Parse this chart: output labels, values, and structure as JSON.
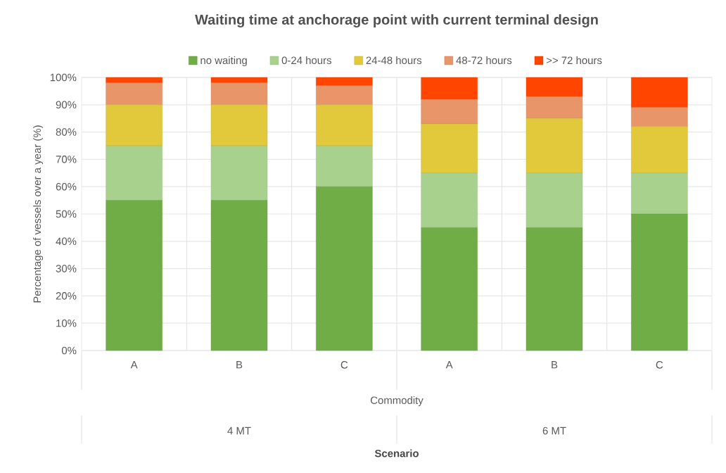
{
  "chart_data": {
    "type": "bar",
    "stacked": true,
    "title": "Waiting time at anchorage point with current terminal design",
    "xlabel": "Commodity",
    "ylabel": "Percentage of vessels over a year (%)",
    "categories": [
      "A",
      "B",
      "C",
      "A",
      "B",
      "C"
    ],
    "annotations": [
      "4 MT",
      "6 MT",
      "Scenario"
    ],
    "series": [
      {
        "name": "no waiting",
        "color": "#70ad47",
        "values": [
          55,
          55,
          60,
          45,
          45,
          50
        ]
      },
      {
        "name": "0-24 hours",
        "color": "#a9d18e",
        "values": [
          20,
          20,
          15,
          20,
          20,
          15
        ]
      },
      {
        "name": "24-48 hours",
        "color": "#e2c93b",
        "values": [
          15,
          15,
          15,
          18,
          20,
          17
        ]
      },
      {
        "name": "48-72 hours",
        "color": "#e8956a",
        "values": [
          8,
          8,
          7,
          9,
          8,
          7
        ]
      },
      {
        "name": ">> 72 hours",
        "color": "#ff4500",
        "values": [
          2,
          2,
          3,
          8,
          7,
          11
        ]
      }
    ],
    "ylim": [
      0,
      100
    ],
    "yticks": [
      {
        "value": 0,
        "label": "0%"
      },
      {
        "value": 10,
        "label": "10%"
      },
      {
        "value": 20,
        "label": "20%"
      },
      {
        "value": 30,
        "label": "30%"
      },
      {
        "value": 40,
        "label": "40%"
      },
      {
        "value": 50,
        "label": "50%"
      },
      {
        "value": 60,
        "label": "60%"
      },
      {
        "value": 70,
        "label": "70%"
      },
      {
        "value": 80,
        "label": "80%"
      },
      {
        "value": 90,
        "label": "90%"
      },
      {
        "value": 100,
        "label": "100%"
      }
    ],
    "grid": true,
    "legend": "top"
  }
}
